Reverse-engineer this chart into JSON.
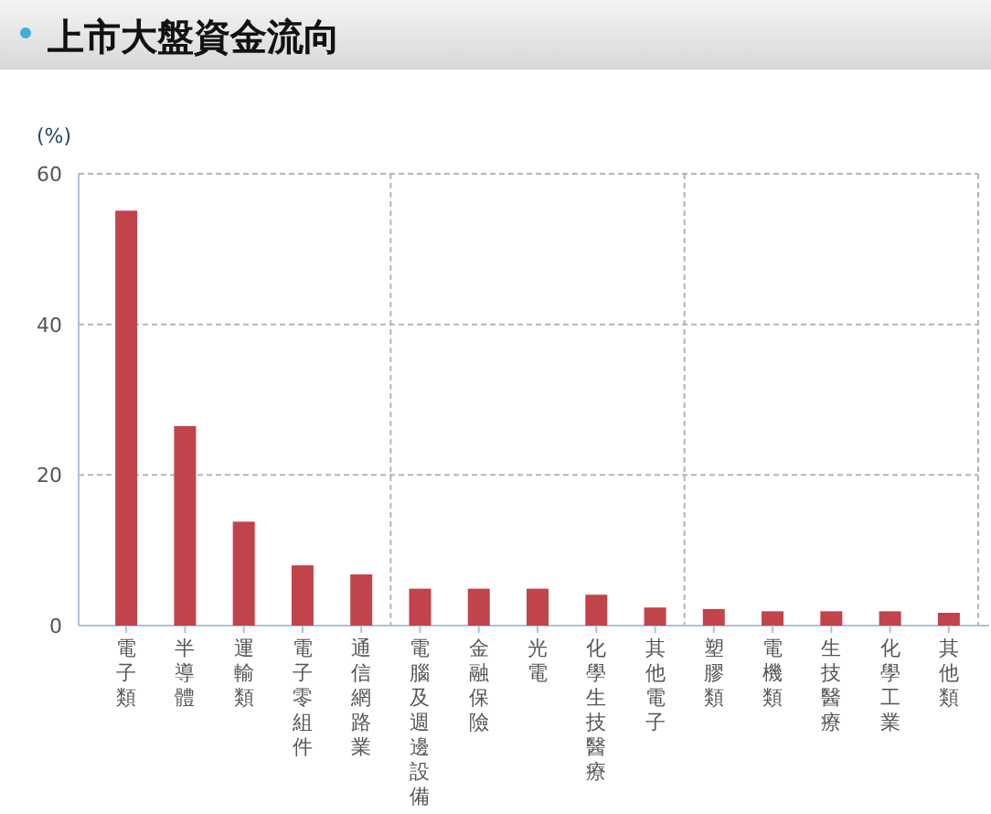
{
  "chart_data": {
    "type": "bar",
    "title": "上市大盤資金流向",
    "ylabel": "(%)",
    "categories": [
      "電子類",
      "半導體",
      "運輸類",
      "電子零組件",
      "通信網路業",
      "電腦及週邊設備",
      "金融保險",
      "光電",
      "化學生技醫療",
      "其他電子",
      "塑膠類",
      "電機類",
      "生技醫療",
      "化學工業",
      "其他類"
    ],
    "values": [
      55.1,
      26.5,
      13.8,
      8.0,
      6.8,
      4.9,
      4.9,
      4.9,
      4.1,
      2.4,
      2.2,
      1.9,
      1.9,
      1.9,
      1.7
    ],
    "color": "#c1444a",
    "ylim": [
      0,
      60
    ],
    "yticks": [
      0,
      20,
      40,
      60
    ],
    "grid": true
  }
}
